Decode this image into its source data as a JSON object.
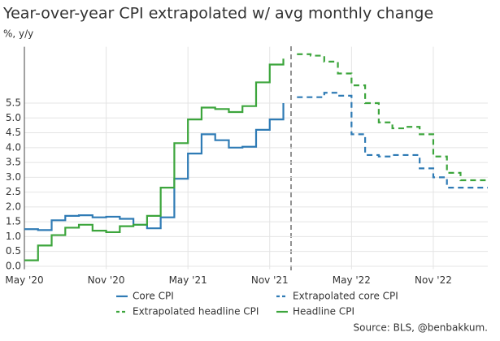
{
  "chart_data": {
    "type": "line",
    "title": "Year-over-year CPI extrapolated w/ avg monthly change",
    "subtitle": "%, y/y",
    "source": "Source: BLS, @benbakkum.",
    "xlim": [
      "2020-05",
      "2023-03"
    ],
    "xticks": [
      {
        "value": "2020-05",
        "label": "May '20"
      },
      {
        "value": "2020-11",
        "label": "Nov '20"
      },
      {
        "value": "2021-05",
        "label": "May '21"
      },
      {
        "value": "2021-11",
        "label": "Nov '21"
      },
      {
        "value": "2022-05",
        "label": "May '22"
      },
      {
        "value": "2022-11",
        "label": "Nov '22"
      }
    ],
    "ylim": [
      -0.1,
      7.4
    ],
    "yticks": [
      {
        "value": 0,
        "label": "0.0"
      },
      0.5,
      {
        "value": 1,
        "label": "1.0"
      },
      1.5,
      {
        "value": 2,
        "label": "2.0"
      },
      2.5,
      {
        "value": 3,
        "label": "3.0"
      },
      3.5,
      {
        "value": 4,
        "label": "4.0"
      },
      4.5,
      {
        "value": 5,
        "label": "5.0"
      },
      5.5
    ],
    "grid": true,
    "step": true,
    "series": [
      {
        "name": "Core CPI",
        "color": "#2f7bb5",
        "dash": false,
        "x": [
          "2020-05",
          "2020-06",
          "2020-07",
          "2020-08",
          "2020-09",
          "2020-10",
          "2020-11",
          "2020-12",
          "2021-01",
          "2021-02",
          "2021-03",
          "2021-04",
          "2021-05",
          "2021-06",
          "2021-07",
          "2021-08",
          "2021-09",
          "2021-10",
          "2021-11",
          "2021-12"
        ],
        "values": [
          1.25,
          1.22,
          1.55,
          1.7,
          1.72,
          1.65,
          1.67,
          1.6,
          1.4,
          1.28,
          1.65,
          2.95,
          3.8,
          4.45,
          4.25,
          4.0,
          4.03,
          4.6,
          4.95,
          5.5
        ]
      },
      {
        "name": "Extrapolated core CPI",
        "color": "#2f7bb5",
        "dash": true,
        "x": [
          "2022-01",
          "2022-02",
          "2022-03",
          "2022-04",
          "2022-05",
          "2022-06",
          "2022-07",
          "2022-08",
          "2022-09",
          "2022-10",
          "2022-11",
          "2022-12",
          "2023-01",
          "2023-02",
          "2023-03"
        ],
        "values": [
          5.7,
          5.7,
          5.85,
          5.75,
          4.45,
          3.75,
          3.7,
          3.75,
          3.75,
          3.3,
          3.0,
          2.65,
          2.65,
          2.65,
          2.65
        ]
      },
      {
        "name": "Extrapolated headline CPI",
        "color": "#3ca53c",
        "dash": true,
        "x": [
          "2022-01",
          "2022-02",
          "2022-03",
          "2022-04",
          "2022-05",
          "2022-06",
          "2022-07",
          "2022-08",
          "2022-09",
          "2022-10",
          "2022-11",
          "2022-12",
          "2023-01",
          "2023-02",
          "2023-03"
        ],
        "values": [
          7.15,
          7.1,
          6.9,
          6.5,
          6.1,
          5.5,
          4.85,
          4.65,
          4.7,
          4.45,
          3.7,
          3.15,
          2.9,
          2.9,
          2.9
        ]
      },
      {
        "name": "Headline CPI",
        "color": "#3ca53c",
        "dash": false,
        "x": [
          "2020-05",
          "2020-06",
          "2020-07",
          "2020-08",
          "2020-09",
          "2020-10",
          "2020-11",
          "2020-12",
          "2021-01",
          "2021-02",
          "2021-03",
          "2021-04",
          "2021-05",
          "2021-06",
          "2021-07",
          "2021-08",
          "2021-09",
          "2021-10",
          "2021-11",
          "2021-12"
        ],
        "values": [
          0.2,
          0.7,
          1.05,
          1.3,
          1.4,
          1.2,
          1.15,
          1.35,
          1.4,
          1.7,
          2.65,
          4.15,
          4.95,
          5.35,
          5.3,
          5.2,
          5.4,
          6.2,
          6.8,
          7.0
        ]
      }
    ]
  }
}
